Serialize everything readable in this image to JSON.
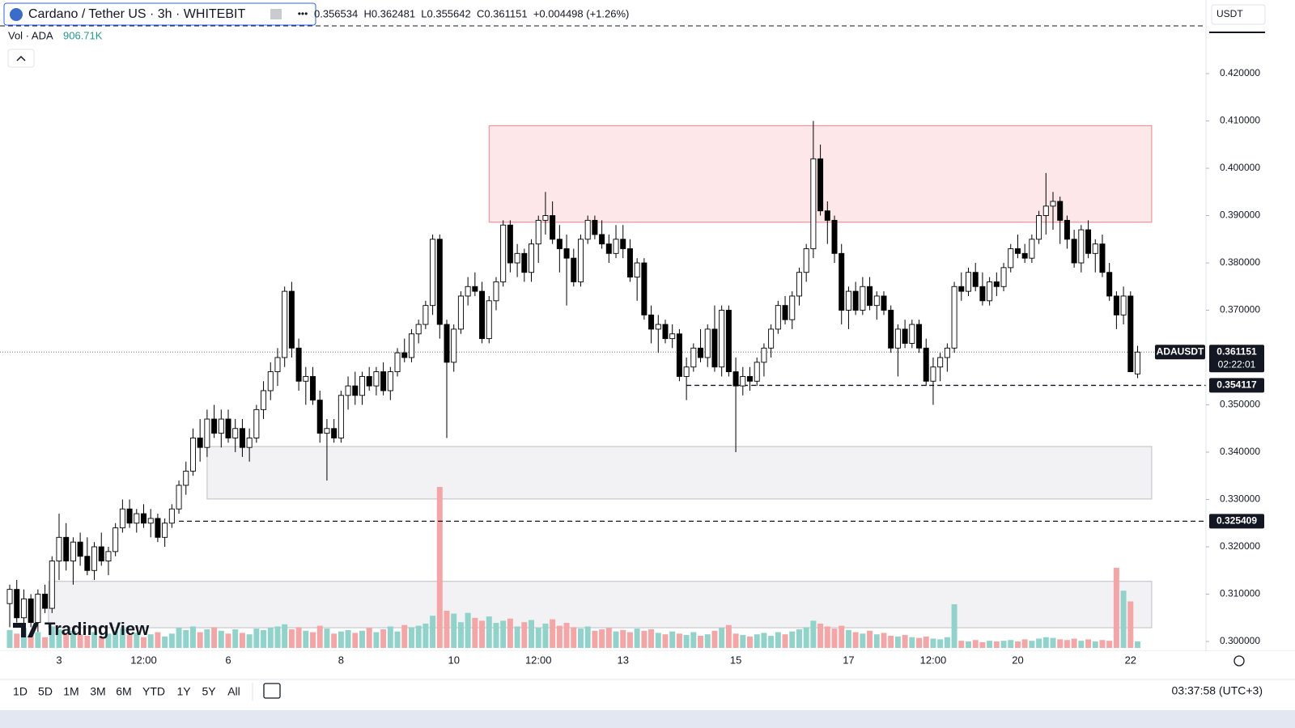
{
  "header": {
    "symbol": "Cardano / Tether US · 3h · WHITEBIT",
    "ohlc": "0.356534  H0.362481  L0.355642  C0.361151  +0.004498 (+1.26%)",
    "volume_label": "Vol · ADA",
    "volume": "906.71K",
    "currency": "USDT"
  },
  "logo": "TradingView",
  "toolbar": {
    "ranges": [
      "1D",
      "5D",
      "1M",
      "3M",
      "6M",
      "YTD",
      "1Y",
      "5Y",
      "All"
    ],
    "clock": "03:37:58 (UTC+3)"
  },
  "chart_data": {
    "type": "candlestick",
    "symbol_label": "ADAUSDT",
    "countdown": "02:22:01",
    "up_color": "#ffffff",
    "down_color": "#000000",
    "volume_up_color": "#8fd3cb",
    "volume_down_color": "#f5a5a5",
    "xlim": [
      -1.38,
      169.7
    ],
    "ylim": [
      0.29795,
      0.43556
    ],
    "yticks": [
      {
        "value": 0.42,
        "label": "0.420000"
      },
      {
        "value": 0.41,
        "label": "0.410000"
      },
      {
        "value": 0.4,
        "label": "0.400000"
      },
      {
        "value": 0.39,
        "label": "0.390000"
      },
      {
        "value": 0.38,
        "label": "0.380000"
      },
      {
        "value": 0.37,
        "label": "0.370000"
      },
      {
        "value": 0.35,
        "label": "0.350000"
      },
      {
        "value": 0.34,
        "label": "0.340000"
      },
      {
        "value": 0.33,
        "label": "0.330000"
      },
      {
        "value": 0.32,
        "label": "0.320000"
      },
      {
        "value": 0.31,
        "label": "0.310000"
      },
      {
        "value": 0.3,
        "label": "0.300000"
      }
    ],
    "xticks": [
      {
        "value": 7,
        "label": "3"
      },
      {
        "value": 19,
        "label": "12:00"
      },
      {
        "value": 31,
        "label": "6"
      },
      {
        "value": 47,
        "label": "8"
      },
      {
        "value": 63,
        "label": "10"
      },
      {
        "value": 75,
        "label": "12:00"
      },
      {
        "value": 87,
        "label": "13"
      },
      {
        "value": 103,
        "label": "15"
      },
      {
        "value": 119,
        "label": "17"
      },
      {
        "value": 131,
        "label": "12:00"
      },
      {
        "value": 143,
        "label": "20"
      },
      {
        "value": 159,
        "label": "22"
      }
    ],
    "zones": [
      {
        "top": 0.409,
        "bottom": 0.3886,
        "start": 68,
        "end": 162,
        "color": "#f23645"
      },
      {
        "top": 0.3412,
        "bottom": 0.3301,
        "start": 28,
        "end": 162,
        "color": "#9598a1"
      },
      {
        "top": 0.3127,
        "bottom": 0.3029,
        "start": 5.5,
        "end": 162,
        "color": "#9598a1"
      }
    ],
    "top_line": 0.4301,
    "levels": [
      {
        "value": 0.354117,
        "start": 96
      },
      {
        "value": 0.325409,
        "start": 24
      }
    ],
    "ohlc": [
      [
        0.308,
        0.312,
        0.303,
        0.311
      ],
      [
        0.311,
        0.313,
        0.304,
        0.305
      ],
      [
        0.305,
        0.311,
        0.302,
        0.309
      ],
      [
        0.309,
        0.31,
        0.303,
        0.304
      ],
      [
        0.304,
        0.311,
        0.302,
        0.31
      ],
      [
        0.31,
        0.312,
        0.306,
        0.307
      ],
      [
        0.307,
        0.318,
        0.306,
        0.317
      ],
      [
        0.317,
        0.327,
        0.313,
        0.322
      ],
      [
        0.322,
        0.325,
        0.315,
        0.317
      ],
      [
        0.317,
        0.322,
        0.312,
        0.321
      ],
      [
        0.321,
        0.323,
        0.316,
        0.318
      ],
      [
        0.318,
        0.322,
        0.314,
        0.315
      ],
      [
        0.315,
        0.321,
        0.313,
        0.32
      ],
      [
        0.32,
        0.323,
        0.316,
        0.317
      ],
      [
        0.317,
        0.32,
        0.314,
        0.319
      ],
      [
        0.319,
        0.325,
        0.318,
        0.324
      ],
      [
        0.324,
        0.33,
        0.323,
        0.328
      ],
      [
        0.328,
        0.33,
        0.324,
        0.325
      ],
      [
        0.325,
        0.328,
        0.323,
        0.327
      ],
      [
        0.327,
        0.329,
        0.324,
        0.325
      ],
      [
        0.325,
        0.328,
        0.322,
        0.326
      ],
      [
        0.326,
        0.327,
        0.321,
        0.322
      ],
      [
        0.322,
        0.326,
        0.32,
        0.325
      ],
      [
        0.325,
        0.329,
        0.324,
        0.328
      ],
      [
        0.328,
        0.334,
        0.327,
        0.333
      ],
      [
        0.333,
        0.338,
        0.331,
        0.336
      ],
      [
        0.336,
        0.345,
        0.335,
        0.343
      ],
      [
        0.343,
        0.347,
        0.338,
        0.341
      ],
      [
        0.341,
        0.349,
        0.339,
        0.347
      ],
      [
        0.347,
        0.35,
        0.343,
        0.344
      ],
      [
        0.344,
        0.349,
        0.341,
        0.347
      ],
      [
        0.347,
        0.349,
        0.342,
        0.343
      ],
      [
        0.343,
        0.347,
        0.34,
        0.345
      ],
      [
        0.345,
        0.347,
        0.339,
        0.341
      ],
      [
        0.341,
        0.345,
        0.338,
        0.343
      ],
      [
        0.343,
        0.35,
        0.342,
        0.349
      ],
      [
        0.349,
        0.355,
        0.347,
        0.353
      ],
      [
        0.353,
        0.359,
        0.351,
        0.357
      ],
      [
        0.357,
        0.362,
        0.354,
        0.36
      ],
      [
        0.36,
        0.375,
        0.358,
        0.374
      ],
      [
        0.374,
        0.376,
        0.36,
        0.362
      ],
      [
        0.362,
        0.364,
        0.353,
        0.355
      ],
      [
        0.355,
        0.358,
        0.35,
        0.356
      ],
      [
        0.356,
        0.358,
        0.35,
        0.351
      ],
      [
        0.351,
        0.353,
        0.342,
        0.344
      ],
      [
        0.344,
        0.347,
        0.334,
        0.345
      ],
      [
        0.345,
        0.347,
        0.342,
        0.343
      ],
      [
        0.343,
        0.353,
        0.342,
        0.352
      ],
      [
        0.352,
        0.356,
        0.349,
        0.354
      ],
      [
        0.354,
        0.357,
        0.35,
        0.352
      ],
      [
        0.352,
        0.357,
        0.35,
        0.356
      ],
      [
        0.356,
        0.358,
        0.353,
        0.354
      ],
      [
        0.354,
        0.358,
        0.352,
        0.357
      ],
      [
        0.357,
        0.359,
        0.352,
        0.353
      ],
      [
        0.353,
        0.358,
        0.351,
        0.357
      ],
      [
        0.357,
        0.362,
        0.356,
        0.361
      ],
      [
        0.361,
        0.364,
        0.359,
        0.36
      ],
      [
        0.36,
        0.366,
        0.359,
        0.365
      ],
      [
        0.365,
        0.368,
        0.363,
        0.367
      ],
      [
        0.367,
        0.372,
        0.366,
        0.371
      ],
      [
        0.371,
        0.386,
        0.369,
        0.385
      ],
      [
        0.385,
        0.386,
        0.364,
        0.367
      ],
      [
        0.367,
        0.368,
        0.343,
        0.359
      ],
      [
        0.359,
        0.367,
        0.357,
        0.366
      ],
      [
        0.366,
        0.374,
        0.365,
        0.373
      ],
      [
        0.373,
        0.377,
        0.371,
        0.375
      ],
      [
        0.375,
        0.378,
        0.373,
        0.374
      ],
      [
        0.374,
        0.376,
        0.363,
        0.364
      ],
      [
        0.364,
        0.373,
        0.363,
        0.372
      ],
      [
        0.372,
        0.377,
        0.37,
        0.376
      ],
      [
        0.376,
        0.389,
        0.375,
        0.388
      ],
      [
        0.388,
        0.389,
        0.378,
        0.38
      ],
      [
        0.38,
        0.384,
        0.377,
        0.382
      ],
      [
        0.382,
        0.383,
        0.376,
        0.378
      ],
      [
        0.378,
        0.385,
        0.376,
        0.384
      ],
      [
        0.384,
        0.39,
        0.38,
        0.389
      ],
      [
        0.389,
        0.395,
        0.386,
        0.39
      ],
      [
        0.39,
        0.393,
        0.384,
        0.385
      ],
      [
        0.385,
        0.388,
        0.378,
        0.383
      ],
      [
        0.383,
        0.386,
        0.371,
        0.381
      ],
      [
        0.381,
        0.383,
        0.375,
        0.376
      ],
      [
        0.376,
        0.386,
        0.375,
        0.385
      ],
      [
        0.385,
        0.39,
        0.384,
        0.389
      ],
      [
        0.389,
        0.39,
        0.385,
        0.386
      ],
      [
        0.386,
        0.389,
        0.383,
        0.384
      ],
      [
        0.384,
        0.386,
        0.38,
        0.382
      ],
      [
        0.382,
        0.388,
        0.381,
        0.385
      ],
      [
        0.385,
        0.388,
        0.381,
        0.383
      ],
      [
        0.383,
        0.385,
        0.376,
        0.377
      ],
      [
        0.377,
        0.381,
        0.372,
        0.38
      ],
      [
        0.38,
        0.381,
        0.368,
        0.369
      ],
      [
        0.369,
        0.371,
        0.363,
        0.366
      ],
      [
        0.366,
        0.369,
        0.361,
        0.367
      ],
      [
        0.367,
        0.368,
        0.363,
        0.364
      ],
      [
        0.364,
        0.367,
        0.362,
        0.365
      ],
      [
        0.365,
        0.366,
        0.355,
        0.356
      ],
      [
        0.356,
        0.36,
        0.351,
        0.358
      ],
      [
        0.358,
        0.363,
        0.357,
        0.362
      ],
      [
        0.362,
        0.366,
        0.359,
        0.36
      ],
      [
        0.36,
        0.367,
        0.358,
        0.366
      ],
      [
        0.366,
        0.371,
        0.357,
        0.358
      ],
      [
        0.358,
        0.371,
        0.356,
        0.37
      ],
      [
        0.37,
        0.371,
        0.356,
        0.357
      ],
      [
        0.357,
        0.36,
        0.34,
        0.354
      ],
      [
        0.354,
        0.358,
        0.352,
        0.356
      ],
      [
        0.356,
        0.358,
        0.353,
        0.355
      ],
      [
        0.355,
        0.36,
        0.354,
        0.359
      ],
      [
        0.359,
        0.363,
        0.356,
        0.362
      ],
      [
        0.362,
        0.367,
        0.36,
        0.366
      ],
      [
        0.366,
        0.372,
        0.365,
        0.371
      ],
      [
        0.371,
        0.373,
        0.367,
        0.368
      ],
      [
        0.368,
        0.374,
        0.366,
        0.373
      ],
      [
        0.373,
        0.379,
        0.371,
        0.378
      ],
      [
        0.378,
        0.384,
        0.376,
        0.383
      ],
      [
        0.383,
        0.41,
        0.381,
        0.402
      ],
      [
        0.402,
        0.405,
        0.39,
        0.391
      ],
      [
        0.391,
        0.393,
        0.384,
        0.389
      ],
      [
        0.389,
        0.39,
        0.38,
        0.382
      ],
      [
        0.382,
        0.384,
        0.367,
        0.37
      ],
      [
        0.37,
        0.375,
        0.366,
        0.374
      ],
      [
        0.374,
        0.376,
        0.369,
        0.37
      ],
      [
        0.37,
        0.377,
        0.369,
        0.375
      ],
      [
        0.375,
        0.377,
        0.37,
        0.371
      ],
      [
        0.371,
        0.374,
        0.368,
        0.373
      ],
      [
        0.373,
        0.374,
        0.369,
        0.37
      ],
      [
        0.37,
        0.371,
        0.361,
        0.362
      ],
      [
        0.362,
        0.367,
        0.356,
        0.366
      ],
      [
        0.366,
        0.368,
        0.362,
        0.363
      ],
      [
        0.363,
        0.368,
        0.362,
        0.367
      ],
      [
        0.367,
        0.368,
        0.361,
        0.362
      ],
      [
        0.362,
        0.364,
        0.354,
        0.355
      ],
      [
        0.355,
        0.36,
        0.35,
        0.358
      ],
      [
        0.358,
        0.361,
        0.355,
        0.36
      ],
      [
        0.36,
        0.363,
        0.357,
        0.362
      ],
      [
        0.362,
        0.376,
        0.361,
        0.375
      ],
      [
        0.375,
        0.378,
        0.372,
        0.374
      ],
      [
        0.374,
        0.379,
        0.373,
        0.378
      ],
      [
        0.378,
        0.38,
        0.374,
        0.375
      ],
      [
        0.375,
        0.378,
        0.371,
        0.372
      ],
      [
        0.372,
        0.377,
        0.371,
        0.376
      ],
      [
        0.376,
        0.378,
        0.373,
        0.375
      ],
      [
        0.375,
        0.38,
        0.374,
        0.379
      ],
      [
        0.379,
        0.384,
        0.378,
        0.383
      ],
      [
        0.383,
        0.386,
        0.381,
        0.382
      ],
      [
        0.382,
        0.384,
        0.38,
        0.381
      ],
      [
        0.381,
        0.386,
        0.38,
        0.385
      ],
      [
        0.385,
        0.391,
        0.384,
        0.39
      ],
      [
        0.39,
        0.399,
        0.386,
        0.392
      ],
      [
        0.392,
        0.395,
        0.387,
        0.393
      ],
      [
        0.393,
        0.394,
        0.384,
        0.389
      ],
      [
        0.389,
        0.39,
        0.383,
        0.385
      ],
      [
        0.385,
        0.387,
        0.379,
        0.38
      ],
      [
        0.38,
        0.388,
        0.378,
        0.387
      ],
      [
        0.387,
        0.389,
        0.381,
        0.382
      ],
      [
        0.382,
        0.385,
        0.378,
        0.384
      ],
      [
        0.384,
        0.386,
        0.377,
        0.378
      ],
      [
        0.378,
        0.38,
        0.372,
        0.373
      ],
      [
        0.373,
        0.374,
        0.366,
        0.369
      ],
      [
        0.369,
        0.375,
        0.367,
        0.373
      ],
      [
        0.373,
        0.374,
        0.357,
        0.357
      ],
      [
        0.356534,
        0.362481,
        0.355642,
        0.361151
      ]
    ],
    "volume": [
      2500000,
      2000000,
      2800000,
      1800000,
      2200000,
      1500000,
      3000000,
      2600000,
      2100000,
      2400000,
      1900000,
      1700000,
      2200000,
      1600000,
      2000000,
      2400000,
      2700000,
      1800000,
      2100000,
      1500000,
      1900000,
      2200000,
      1600000,
      2000000,
      2800000,
      2500000,
      3000000,
      2200000,
      2600000,
      2900000,
      2400000,
      2000000,
      2600000,
      2100000,
      1900000,
      2700000,
      2500000,
      2800000,
      3000000,
      3300000,
      2600000,
      2900000,
      2400000,
      2200000,
      3100000,
      2700000,
      2000000,
      2300000,
      2500000,
      2100000,
      2400000,
      2800000,
      2200000,
      2600000,
      3000000,
      2300000,
      3200000,
      2900000,
      3100000,
      3400000,
      4500000,
      22500000,
      5200000,
      4800000,
      3600000,
      4900000,
      4200000,
      3800000,
      4400000,
      3500000,
      3800000,
      4100000,
      3000000,
      3600000,
      3900000,
      2800000,
      3400000,
      4000000,
      3100000,
      3500000,
      2900000,
      2700000,
      3000000,
      2400000,
      2600000,
      2800000,
      2300000,
      2500000,
      2200000,
      2700000,
      2400000,
      2600000,
      2100000,
      1900000,
      2300000,
      2000000,
      1800000,
      2200000,
      1700000,
      1900000,
      2400000,
      2800000,
      3200000,
      2000000,
      1800000,
      1600000,
      1900000,
      2100000,
      1700000,
      2200000,
      1900000,
      2300000,
      2600000,
      2900000,
      3800000,
      3400000,
      3000000,
      2700000,
      3100000,
      2500000,
      2200000,
      2000000,
      2400000,
      1900000,
      2100000,
      1700000,
      1600000,
      1800000,
      1500000,
      1400000,
      1600000,
      1300000,
      1200000,
      1500000,
      6100000,
      1000000,
      900000,
      1100000,
      800000,
      1000000,
      900000,
      1000000,
      1100000,
      900000,
      1200000,
      1000000,
      1300000,
      1500000,
      1400000,
      1200000,
      1100000,
      1300000,
      1000000,
      1200000,
      900000,
      1100000,
      1000000,
      11200000,
      8000000,
      6500000,
      906710
    ]
  }
}
